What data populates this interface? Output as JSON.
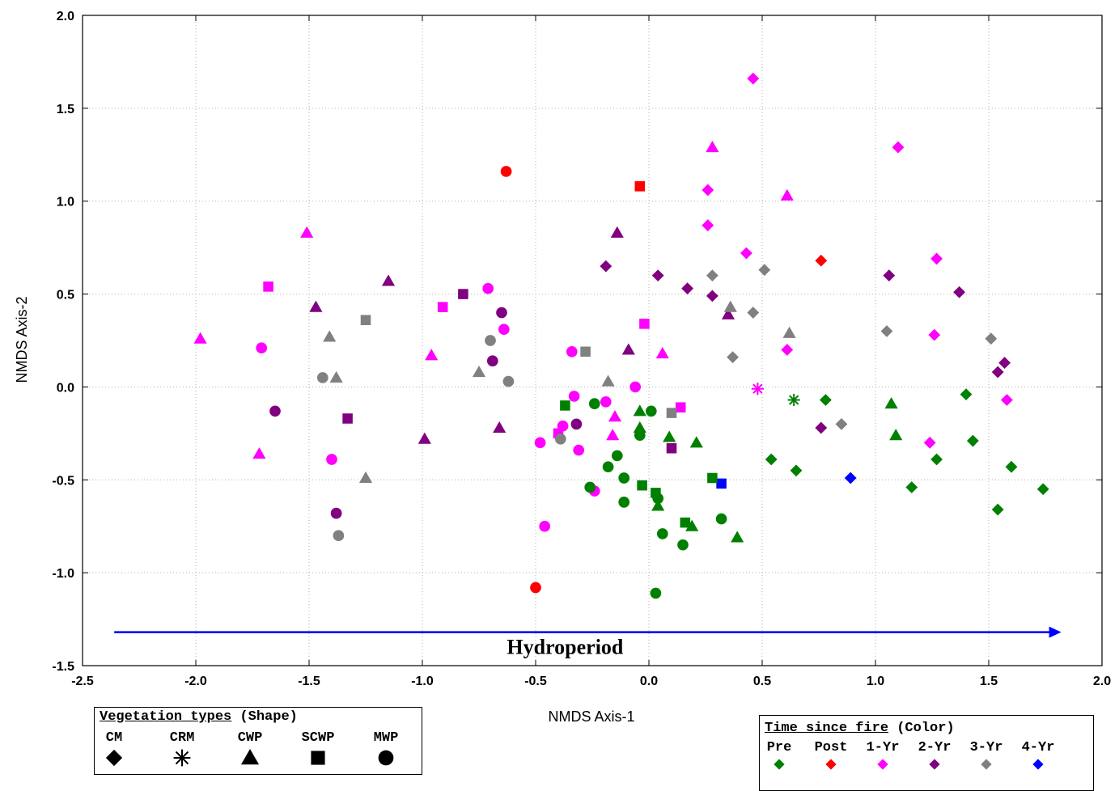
{
  "chart_data": {
    "type": "scatter",
    "xlabel": "NMDS Axis-1",
    "ylabel": "NMDS Axis-2",
    "xlim": [
      -2.5,
      2.0
    ],
    "ylim": [
      -1.5,
      2.0
    ],
    "x_ticks": [
      "-2.5",
      "-2.0",
      "-1.5",
      "-1.0",
      "-0.5",
      "0.0",
      "0.5",
      "1.0",
      "1.5",
      "2.0"
    ],
    "y_ticks": [
      "2.0",
      "1.5",
      "1.0",
      "0.5",
      "0.0",
      "-0.5",
      "-1.0",
      "-1.5"
    ],
    "grid": true,
    "annotation": {
      "text": "Hydroperiod",
      "arrow_from": [
        -2.36,
        -1.32
      ],
      "arrow_to": [
        1.82,
        -1.32
      ]
    },
    "legend_shape": {
      "title_underlined": "Vegetation types",
      "title_suffix": " (Shape)",
      "entries": [
        {
          "label": "CM",
          "shape": "diamond"
        },
        {
          "label": "CRM",
          "shape": "asterisk"
        },
        {
          "label": "CWP",
          "shape": "triangle"
        },
        {
          "label": "SCWP",
          "shape": "square"
        },
        {
          "label": "MWP",
          "shape": "circle"
        }
      ]
    },
    "legend_color": {
      "title_underlined": "Time since fire",
      "title_suffix": " (Color)",
      "entries": [
        {
          "label": "Pre",
          "color": "#008000"
        },
        {
          "label": "Post",
          "color": "#ff0000"
        },
        {
          "label": "1-Yr",
          "color": "#ff00ff"
        },
        {
          "label": "2-Yr",
          "color": "#800080"
        },
        {
          "label": "3-Yr",
          "color": "#808080"
        },
        {
          "label": "4-Yr",
          "color": "#0000ff"
        }
      ]
    },
    "points": [
      {
        "x": -0.63,
        "y": 1.16,
        "shape": "circle",
        "group": "Post"
      },
      {
        "x": -0.5,
        "y": -1.08,
        "shape": "circle",
        "group": "Post"
      },
      {
        "x": -0.04,
        "y": 1.08,
        "shape": "square",
        "group": "Post"
      },
      {
        "x": 0.76,
        "y": 0.68,
        "shape": "diamond",
        "group": "Post"
      },
      {
        "x": 0.89,
        "y": -0.49,
        "shape": "diamond",
        "group": "4-Yr"
      },
      {
        "x": 0.32,
        "y": -0.52,
        "shape": "square",
        "group": "4-Yr"
      },
      {
        "x": 0.46,
        "y": 1.66,
        "shape": "diamond",
        "group": "1-Yr"
      },
      {
        "x": 1.1,
        "y": 1.29,
        "shape": "diamond",
        "group": "1-Yr"
      },
      {
        "x": 0.26,
        "y": 1.06,
        "shape": "diamond",
        "group": "1-Yr"
      },
      {
        "x": 0.26,
        "y": 0.87,
        "shape": "diamond",
        "group": "1-Yr"
      },
      {
        "x": 0.43,
        "y": 0.72,
        "shape": "diamond",
        "group": "1-Yr"
      },
      {
        "x": 1.27,
        "y": 0.69,
        "shape": "diamond",
        "group": "1-Yr"
      },
      {
        "x": 1.26,
        "y": 0.28,
        "shape": "diamond",
        "group": "1-Yr"
      },
      {
        "x": 0.61,
        "y": 0.2,
        "shape": "diamond",
        "group": "1-Yr"
      },
      {
        "x": 1.58,
        "y": -0.07,
        "shape": "diamond",
        "group": "1-Yr"
      },
      {
        "x": 1.24,
        "y": -0.3,
        "shape": "diamond",
        "group": "1-Yr"
      },
      {
        "x": 0.48,
        "y": -0.01,
        "shape": "asterisk",
        "group": "1-Yr"
      },
      {
        "x": 0.28,
        "y": 1.29,
        "shape": "triangle",
        "group": "1-Yr"
      },
      {
        "x": 0.61,
        "y": 1.03,
        "shape": "triangle",
        "group": "1-Yr"
      },
      {
        "x": -1.51,
        "y": 0.83,
        "shape": "triangle",
        "group": "1-Yr"
      },
      {
        "x": -1.98,
        "y": 0.26,
        "shape": "triangle",
        "group": "1-Yr"
      },
      {
        "x": -0.96,
        "y": 0.17,
        "shape": "triangle",
        "group": "1-Yr"
      },
      {
        "x": 0.06,
        "y": 0.18,
        "shape": "triangle",
        "group": "1-Yr"
      },
      {
        "x": -1.72,
        "y": -0.36,
        "shape": "triangle",
        "group": "1-Yr"
      },
      {
        "x": -0.15,
        "y": -0.16,
        "shape": "triangle",
        "group": "1-Yr"
      },
      {
        "x": -0.16,
        "y": -0.26,
        "shape": "triangle",
        "group": "1-Yr"
      },
      {
        "x": -1.68,
        "y": 0.54,
        "shape": "square",
        "group": "1-Yr"
      },
      {
        "x": -0.91,
        "y": 0.43,
        "shape": "square",
        "group": "1-Yr"
      },
      {
        "x": -0.02,
        "y": 0.34,
        "shape": "square",
        "group": "1-Yr"
      },
      {
        "x": 0.14,
        "y": -0.11,
        "shape": "square",
        "group": "1-Yr"
      },
      {
        "x": -0.4,
        "y": -0.25,
        "shape": "square",
        "group": "1-Yr"
      },
      {
        "x": -0.71,
        "y": 0.53,
        "shape": "circle",
        "group": "1-Yr"
      },
      {
        "x": -0.64,
        "y": 0.31,
        "shape": "circle",
        "group": "1-Yr"
      },
      {
        "x": -1.71,
        "y": 0.21,
        "shape": "circle",
        "group": "1-Yr"
      },
      {
        "x": -0.34,
        "y": 0.19,
        "shape": "circle",
        "group": "1-Yr"
      },
      {
        "x": -0.06,
        "y": 0.0,
        "shape": "circle",
        "group": "1-Yr"
      },
      {
        "x": -0.33,
        "y": -0.05,
        "shape": "circle",
        "group": "1-Yr"
      },
      {
        "x": -0.19,
        "y": -0.08,
        "shape": "circle",
        "group": "1-Yr"
      },
      {
        "x": -0.38,
        "y": -0.21,
        "shape": "circle",
        "group": "1-Yr"
      },
      {
        "x": -0.48,
        "y": -0.3,
        "shape": "circle",
        "group": "1-Yr"
      },
      {
        "x": -0.31,
        "y": -0.34,
        "shape": "circle",
        "group": "1-Yr"
      },
      {
        "x": -1.4,
        "y": -0.39,
        "shape": "circle",
        "group": "1-Yr"
      },
      {
        "x": -0.24,
        "y": -0.56,
        "shape": "circle",
        "group": "1-Yr"
      },
      {
        "x": -0.46,
        "y": -0.75,
        "shape": "circle",
        "group": "1-Yr"
      },
      {
        "x": -0.19,
        "y": 0.65,
        "shape": "diamond",
        "group": "2-Yr"
      },
      {
        "x": 0.04,
        "y": 0.6,
        "shape": "diamond",
        "group": "2-Yr"
      },
      {
        "x": 0.17,
        "y": 0.53,
        "shape": "diamond",
        "group": "2-Yr"
      },
      {
        "x": 0.28,
        "y": 0.49,
        "shape": "diamond",
        "group": "2-Yr"
      },
      {
        "x": 1.06,
        "y": 0.6,
        "shape": "diamond",
        "group": "2-Yr"
      },
      {
        "x": 1.37,
        "y": 0.51,
        "shape": "diamond",
        "group": "2-Yr"
      },
      {
        "x": 1.57,
        "y": 0.13,
        "shape": "diamond",
        "group": "2-Yr"
      },
      {
        "x": 1.54,
        "y": 0.08,
        "shape": "diamond",
        "group": "2-Yr"
      },
      {
        "x": 0.76,
        "y": -0.22,
        "shape": "diamond",
        "group": "2-Yr"
      },
      {
        "x": -0.14,
        "y": 0.83,
        "shape": "triangle",
        "group": "2-Yr"
      },
      {
        "x": -1.15,
        "y": 0.57,
        "shape": "triangle",
        "group": "2-Yr"
      },
      {
        "x": -1.47,
        "y": 0.43,
        "shape": "triangle",
        "group": "2-Yr"
      },
      {
        "x": 0.35,
        "y": 0.39,
        "shape": "triangle",
        "group": "2-Yr"
      },
      {
        "x": -0.09,
        "y": 0.2,
        "shape": "triangle",
        "group": "2-Yr"
      },
      {
        "x": -0.99,
        "y": -0.28,
        "shape": "triangle",
        "group": "2-Yr"
      },
      {
        "x": -0.66,
        "y": -0.22,
        "shape": "triangle",
        "group": "2-Yr"
      },
      {
        "x": -0.82,
        "y": 0.5,
        "shape": "square",
        "group": "2-Yr"
      },
      {
        "x": -1.33,
        "y": -0.17,
        "shape": "square",
        "group": "2-Yr"
      },
      {
        "x": 0.1,
        "y": -0.33,
        "shape": "square",
        "group": "2-Yr"
      },
      {
        "x": -0.65,
        "y": 0.4,
        "shape": "circle",
        "group": "2-Yr"
      },
      {
        "x": -0.69,
        "y": 0.14,
        "shape": "circle",
        "group": "2-Yr"
      },
      {
        "x": -1.65,
        "y": -0.13,
        "shape": "circle",
        "group": "2-Yr"
      },
      {
        "x": -0.32,
        "y": -0.2,
        "shape": "circle",
        "group": "2-Yr"
      },
      {
        "x": -1.38,
        "y": -0.68,
        "shape": "circle",
        "group": "2-Yr"
      },
      {
        "x": 0.28,
        "y": 0.6,
        "shape": "diamond",
        "group": "3-Yr"
      },
      {
        "x": 0.51,
        "y": 0.63,
        "shape": "diamond",
        "group": "3-Yr"
      },
      {
        "x": 0.46,
        "y": 0.4,
        "shape": "diamond",
        "group": "3-Yr"
      },
      {
        "x": 0.37,
        "y": 0.16,
        "shape": "diamond",
        "group": "3-Yr"
      },
      {
        "x": 1.05,
        "y": 0.3,
        "shape": "diamond",
        "group": "3-Yr"
      },
      {
        "x": 1.51,
        "y": 0.26,
        "shape": "diamond",
        "group": "3-Yr"
      },
      {
        "x": 0.85,
        "y": -0.2,
        "shape": "diamond",
        "group": "3-Yr"
      },
      {
        "x": 0.36,
        "y": 0.43,
        "shape": "triangle",
        "group": "3-Yr"
      },
      {
        "x": 0.62,
        "y": 0.29,
        "shape": "triangle",
        "group": "3-Yr"
      },
      {
        "x": -1.41,
        "y": 0.27,
        "shape": "triangle",
        "group": "3-Yr"
      },
      {
        "x": -1.38,
        "y": 0.05,
        "shape": "triangle",
        "group": "3-Yr"
      },
      {
        "x": -0.75,
        "y": 0.08,
        "shape": "triangle",
        "group": "3-Yr"
      },
      {
        "x": -0.18,
        "y": 0.03,
        "shape": "triangle",
        "group": "3-Yr"
      },
      {
        "x": -1.25,
        "y": -0.49,
        "shape": "triangle",
        "group": "3-Yr"
      },
      {
        "x": -1.25,
        "y": 0.36,
        "shape": "square",
        "group": "3-Yr"
      },
      {
        "x": -0.28,
        "y": 0.19,
        "shape": "square",
        "group": "3-Yr"
      },
      {
        "x": 0.1,
        "y": -0.14,
        "shape": "square",
        "group": "3-Yr"
      },
      {
        "x": -0.7,
        "y": 0.25,
        "shape": "circle",
        "group": "3-Yr"
      },
      {
        "x": -1.44,
        "y": 0.05,
        "shape": "circle",
        "group": "3-Yr"
      },
      {
        "x": -0.62,
        "y": 0.03,
        "shape": "circle",
        "group": "3-Yr"
      },
      {
        "x": -0.39,
        "y": -0.28,
        "shape": "circle",
        "group": "3-Yr"
      },
      {
        "x": -1.37,
        "y": -0.8,
        "shape": "circle",
        "group": "3-Yr"
      },
      {
        "x": 0.78,
        "y": -0.07,
        "shape": "diamond",
        "group": "Pre"
      },
      {
        "x": 1.4,
        "y": -0.04,
        "shape": "diamond",
        "group": "Pre"
      },
      {
        "x": 1.43,
        "y": -0.29,
        "shape": "diamond",
        "group": "Pre"
      },
      {
        "x": 1.27,
        "y": -0.39,
        "shape": "diamond",
        "group": "Pre"
      },
      {
        "x": 1.6,
        "y": -0.43,
        "shape": "diamond",
        "group": "Pre"
      },
      {
        "x": 0.54,
        "y": -0.39,
        "shape": "diamond",
        "group": "Pre"
      },
      {
        "x": 0.65,
        "y": -0.45,
        "shape": "diamond",
        "group": "Pre"
      },
      {
        "x": 1.16,
        "y": -0.54,
        "shape": "diamond",
        "group": "Pre"
      },
      {
        "x": 1.74,
        "y": -0.55,
        "shape": "diamond",
        "group": "Pre"
      },
      {
        "x": 1.54,
        "y": -0.66,
        "shape": "diamond",
        "group": "Pre"
      },
      {
        "x": 0.64,
        "y": -0.07,
        "shape": "asterisk",
        "group": "Pre"
      },
      {
        "x": 1.07,
        "y": -0.09,
        "shape": "triangle",
        "group": "Pre"
      },
      {
        "x": 1.09,
        "y": -0.26,
        "shape": "triangle",
        "group": "Pre"
      },
      {
        "x": -0.04,
        "y": -0.13,
        "shape": "triangle",
        "group": "Pre"
      },
      {
        "x": -0.04,
        "y": -0.22,
        "shape": "triangle",
        "group": "Pre"
      },
      {
        "x": 0.09,
        "y": -0.27,
        "shape": "triangle",
        "group": "Pre"
      },
      {
        "x": 0.21,
        "y": -0.3,
        "shape": "triangle",
        "group": "Pre"
      },
      {
        "x": 0.04,
        "y": -0.64,
        "shape": "triangle",
        "group": "Pre"
      },
      {
        "x": 0.19,
        "y": -0.75,
        "shape": "triangle",
        "group": "Pre"
      },
      {
        "x": 0.39,
        "y": -0.81,
        "shape": "triangle",
        "group": "Pre"
      },
      {
        "x": -0.37,
        "y": -0.1,
        "shape": "square",
        "group": "Pre"
      },
      {
        "x": -0.03,
        "y": -0.53,
        "shape": "square",
        "group": "Pre"
      },
      {
        "x": 0.03,
        "y": -0.57,
        "shape": "square",
        "group": "Pre"
      },
      {
        "x": 0.28,
        "y": -0.49,
        "shape": "square",
        "group": "Pre"
      },
      {
        "x": 0.16,
        "y": -0.73,
        "shape": "square",
        "group": "Pre"
      },
      {
        "x": -0.24,
        "y": -0.09,
        "shape": "circle",
        "group": "Pre"
      },
      {
        "x": 0.01,
        "y": -0.13,
        "shape": "circle",
        "group": "Pre"
      },
      {
        "x": -0.04,
        "y": -0.26,
        "shape": "circle",
        "group": "Pre"
      },
      {
        "x": -0.14,
        "y": -0.37,
        "shape": "circle",
        "group": "Pre"
      },
      {
        "x": -0.18,
        "y": -0.43,
        "shape": "circle",
        "group": "Pre"
      },
      {
        "x": -0.11,
        "y": -0.49,
        "shape": "circle",
        "group": "Pre"
      },
      {
        "x": -0.26,
        "y": -0.54,
        "shape": "circle",
        "group": "Pre"
      },
      {
        "x": 0.04,
        "y": -0.6,
        "shape": "circle",
        "group": "Pre"
      },
      {
        "x": -0.11,
        "y": -0.62,
        "shape": "circle",
        "group": "Pre"
      },
      {
        "x": 0.32,
        "y": -0.71,
        "shape": "circle",
        "group": "Pre"
      },
      {
        "x": 0.06,
        "y": -0.79,
        "shape": "circle",
        "group": "Pre"
      },
      {
        "x": 0.15,
        "y": -0.85,
        "shape": "circle",
        "group": "Pre"
      },
      {
        "x": 0.03,
        "y": -1.11,
        "shape": "circle",
        "group": "Pre"
      }
    ]
  }
}
